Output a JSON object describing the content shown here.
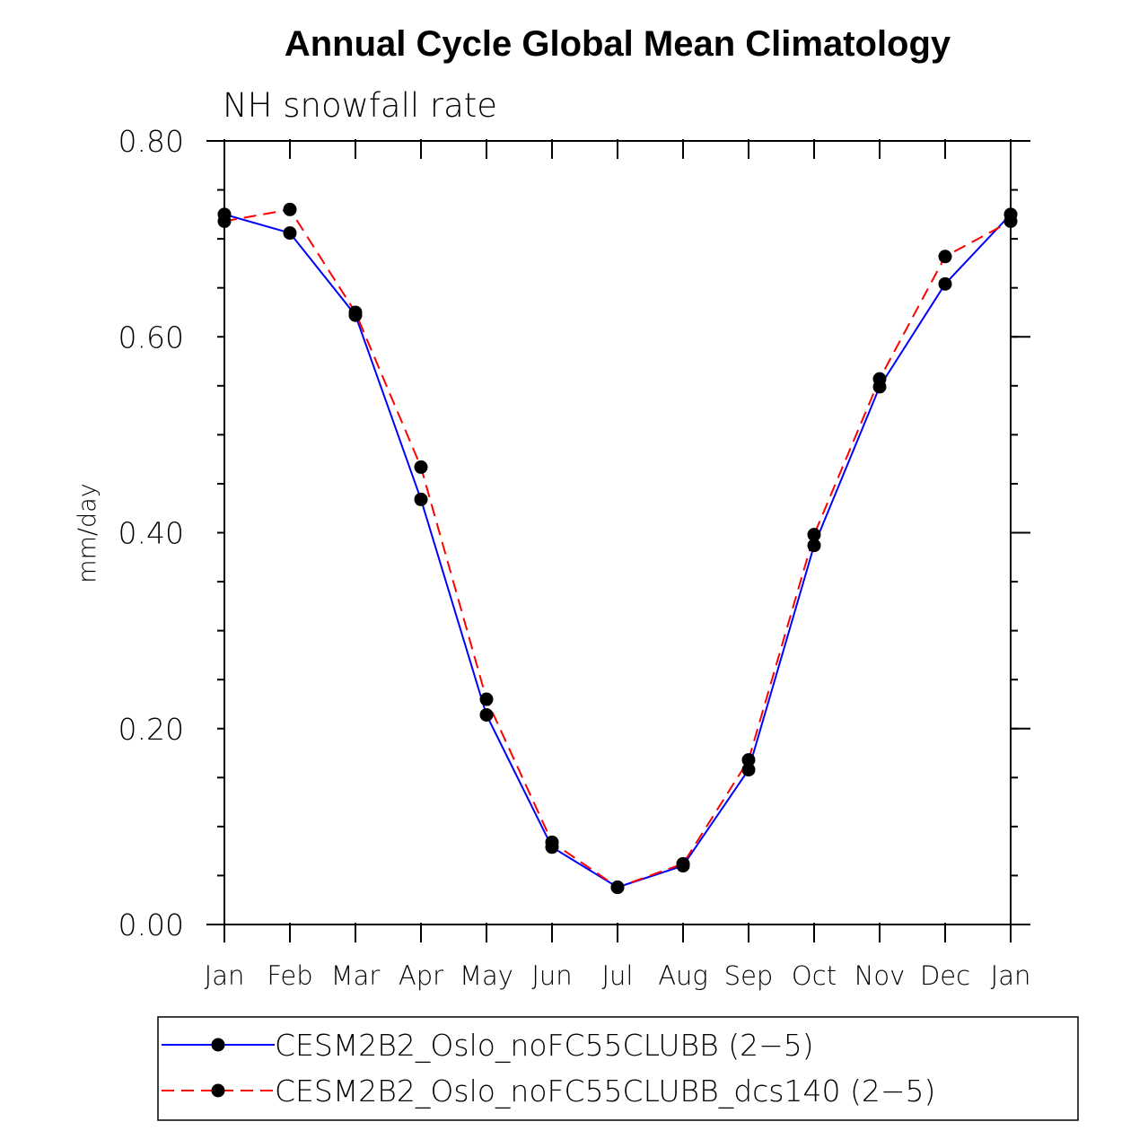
{
  "chart_data": {
    "type": "line",
    "title": "Annual Cycle Global Mean Climatology",
    "subtitle": "NH snowfall rate",
    "xlabel": "",
    "ylabel": "mm/day",
    "categories": [
      "Jan",
      "Feb",
      "Mar",
      "Apr",
      "May",
      "Jun",
      "Jul",
      "Aug",
      "Sep",
      "Oct",
      "Nov",
      "Dec",
      "Jan"
    ],
    "ylim": [
      0.0,
      0.8
    ],
    "yticks": [
      "0.00",
      "0.20",
      "0.40",
      "0.60",
      "0.80"
    ],
    "y_minor_step": 0.05,
    "legend_position": "bottom",
    "series": [
      {
        "name": "CESM2B2_Oslo_noFC55CLUBB (2−5)",
        "color": "#0000ff",
        "dash": "solid",
        "marker": "circle",
        "values": [
          0.725,
          0.706,
          0.622,
          0.434,
          0.214,
          0.079,
          0.038,
          0.06,
          0.158,
          0.387,
          0.549,
          0.654,
          0.725
        ]
      },
      {
        "name": "CESM2B2_Oslo_noFC55CLUBB_dcs140 (2−5)",
        "color": "#ff0000",
        "dash": "dashed",
        "marker": "circle",
        "values": [
          0.718,
          0.73,
          0.625,
          0.467,
          0.23,
          0.084,
          0.038,
          0.062,
          0.168,
          0.398,
          0.557,
          0.682,
          0.718
        ]
      }
    ]
  }
}
